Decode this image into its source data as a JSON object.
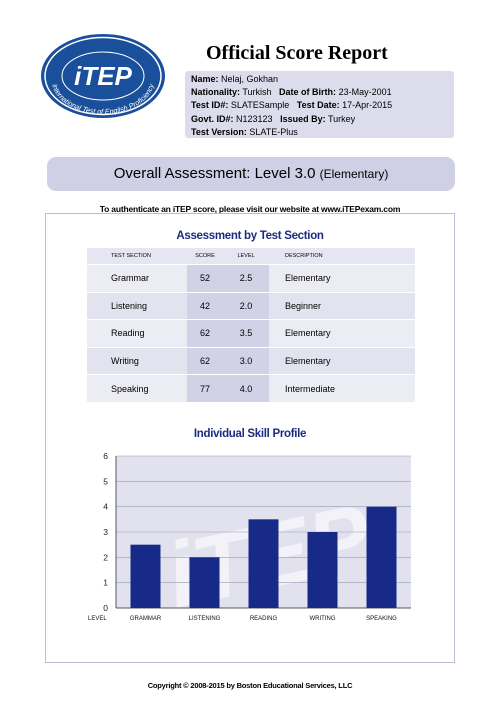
{
  "logo": {
    "brand": "iTEP",
    "tagline": "International Test of English Proficiency"
  },
  "report_title": "Official Score Report",
  "candidate": {
    "name_label": "Name:",
    "name": "Nelaj, Gokhan",
    "nationality_label": "Nationality:",
    "nationality": "Turkish",
    "dob_label": "Date of Birth:",
    "dob": "23-May-2001",
    "test_id_label": "Test ID#:",
    "test_id": "SLATESample",
    "test_date_label": "Test Date:",
    "test_date": "17-Apr-2015",
    "govt_id_label": "Govt. ID#:",
    "govt_id": "N123123",
    "issued_by_label": "Issued By:",
    "issued_by": "Turkey",
    "test_version_label": "Test Version:",
    "test_version": "SLATE-Plus"
  },
  "overall": {
    "text": "Overall Assessment: Level 3.0",
    "level_name": "(Elementary)"
  },
  "authenticate_text": "To authenticate an iTEP score, please visit our website at www.iTEPexam.com",
  "section_table": {
    "title": "Assessment by Test Section",
    "headers": [
      "TEST SECTION",
      "SCORE",
      "LEVEL",
      "DESCRIPTION"
    ],
    "rows": [
      [
        "Grammar",
        "52",
        "2.5",
        "Elementary"
      ],
      [
        "Listening",
        "42",
        "2.0",
        "Beginner"
      ],
      [
        "Reading",
        "62",
        "3.5",
        "Elementary"
      ],
      [
        "Writing",
        "62",
        "3.0",
        "Elementary"
      ],
      [
        "Speaking",
        "77",
        "4.0",
        "Intermediate"
      ]
    ]
  },
  "chart_data": {
    "type": "bar",
    "title": "Individual Skill Profile",
    "xlabel": "LEVEL",
    "categories": [
      "GRAMMAR",
      "LISTENING",
      "READING",
      "WRITING",
      "SPEAKING"
    ],
    "values": [
      2.5,
      2,
      3.5,
      3,
      4
    ],
    "ylim": [
      0,
      6
    ],
    "yticks": [
      "0",
      "1",
      "2",
      "3",
      "4",
      "5",
      "6"
    ],
    "grid": true,
    "bar_color": "#172a88",
    "plot_bg": "#e2e2ef",
    "watermark": "iTEP"
  },
  "copyright": "Copyright © 2008-2015 by Boston Educational Services, LLC"
}
